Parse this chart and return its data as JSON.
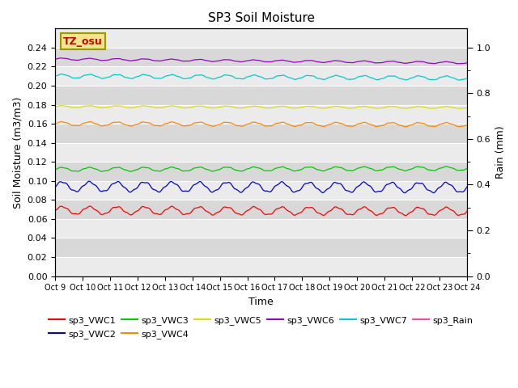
{
  "title": "SP3 Soil Moisture",
  "xlabel": "Time",
  "ylabel_left": "Soil Moisture (m3/m3)",
  "ylabel_right": "Rain (mm)",
  "x_tick_labels": [
    "Oct 9",
    "Oct 10",
    "Oct 11",
    "Oct 12",
    "Oct 13",
    "Oct 14",
    "Oct 15",
    "Oct 16",
    "Oct 17",
    "Oct 18",
    "Oct 19",
    "Oct 20",
    "Oct 21",
    "Oct 22",
    "Oct 23",
    "Oct 24"
  ],
  "ylim_left": [
    0.0,
    0.26
  ],
  "ylim_right": [
    0.0,
    1.083
  ],
  "yticks_left": [
    0.0,
    0.02,
    0.04,
    0.06,
    0.08,
    0.1,
    0.12,
    0.14,
    0.16,
    0.18,
    0.2,
    0.22,
    0.24
  ],
  "yticks_right": [
    0.0,
    0.2,
    0.4,
    0.6,
    0.8,
    1.0
  ],
  "bg_light": "#ebebeb",
  "bg_dark": "#d8d8d8",
  "annotation_text": "TZ_osu",
  "annotation_color": "#cc0000",
  "annotation_bg": "#f0e68c",
  "annotation_border": "#999900",
  "series": {
    "sp3_VWC1": {
      "color": "#ff0000",
      "base": 0.069,
      "amp": 0.004,
      "trend": -0.001
    },
    "sp3_VWC2": {
      "color": "#0000dd",
      "base": 0.094,
      "amp": 0.005,
      "trend": -0.001
    },
    "sp3_VWC3": {
      "color": "#00cc00",
      "base": 0.112,
      "amp": 0.002,
      "trend": 0.001
    },
    "sp3_VWC4": {
      "color": "#ff8800",
      "base": 0.16,
      "amp": 0.002,
      "trend": -0.001
    },
    "sp3_VWC5": {
      "color": "#dddd00",
      "base": 0.178,
      "amp": 0.001,
      "trend": -0.001
    },
    "sp3_VWC6": {
      "color": "#9900cc",
      "base": 0.228,
      "amp": 0.001,
      "trend": -0.004
    },
    "sp3_VWC7": {
      "color": "#00cccc",
      "base": 0.21,
      "amp": 0.002,
      "trend": -0.002
    },
    "sp3_Rain": {
      "color": "#ff44aa",
      "base": 0.0,
      "amp": 0.0,
      "trend": 0.0
    }
  },
  "legend_order": [
    "sp3_VWC1",
    "sp3_VWC2",
    "sp3_VWC3",
    "sp3_VWC4",
    "sp3_VWC5",
    "sp3_VWC6",
    "sp3_VWC7",
    "sp3_Rain"
  ]
}
